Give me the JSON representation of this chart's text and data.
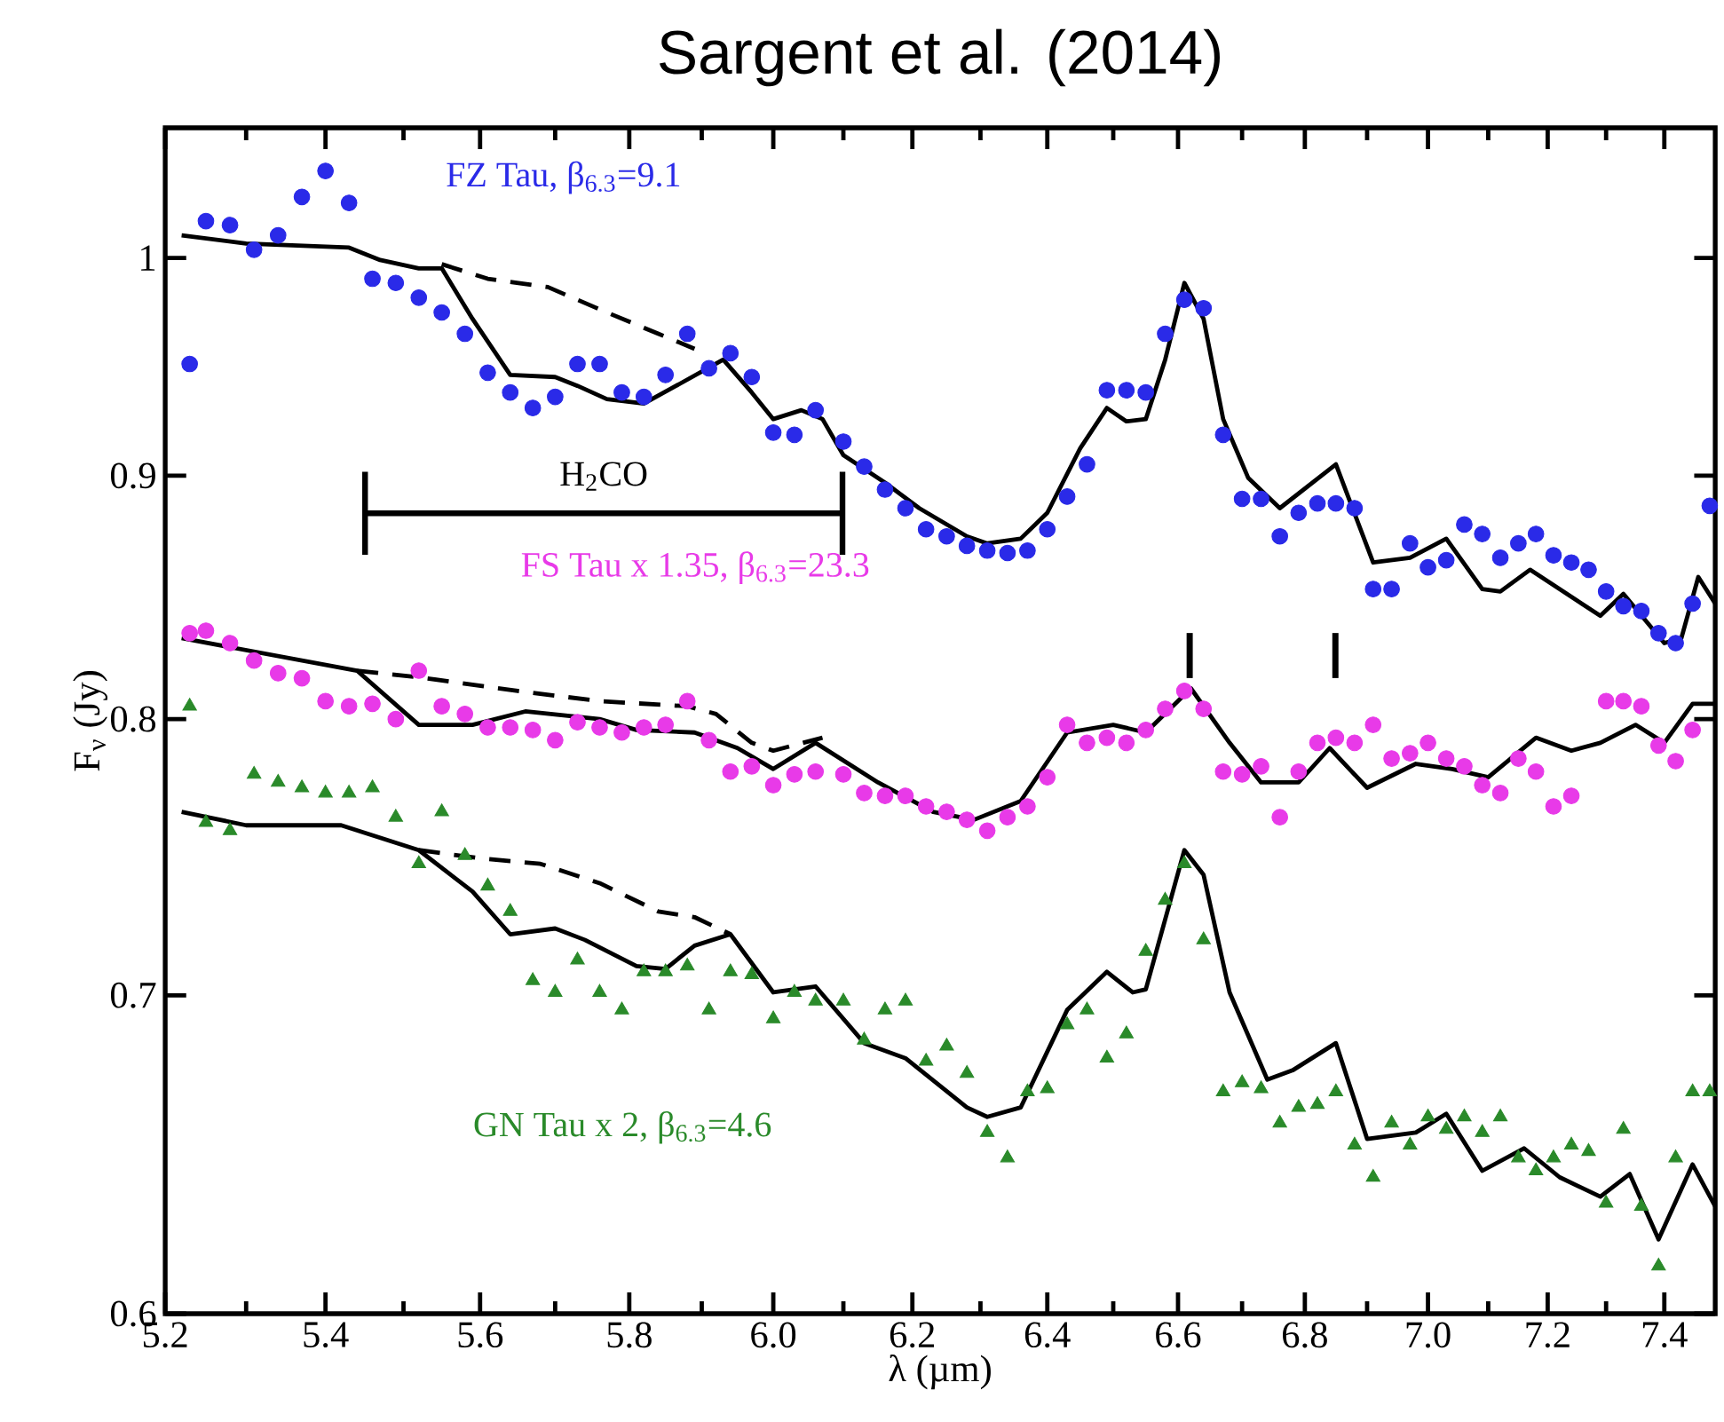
{
  "chart_data": {
    "type": "scatter",
    "title": "Sargent et al. (2014)",
    "xlabel": "λ (µm)",
    "ylabel": "F$_{ν}$ (Jy)",
    "log": "xy",
    "xlim": [
      5.2,
      7.49
    ],
    "ylim": [
      0.6,
      1.065
    ],
    "xticks": [
      {
        "value": 5.2,
        "label": "5.2"
      },
      {
        "value": 5.4,
        "label": "5.4"
      },
      {
        "value": 5.6,
        "label": "5.6"
      },
      {
        "value": 5.8,
        "label": "5.8"
      },
      {
        "value": 6,
        "label": "6.0"
      },
      {
        "value": 6.2,
        "label": "6.2"
      },
      {
        "value": 6.4,
        "label": "6.4"
      },
      {
        "value": 6.6,
        "label": "6.6"
      },
      {
        "value": 6.8,
        "label": "6.8"
      },
      {
        "value": 7,
        "label": "7.0"
      },
      {
        "value": 7.2,
        "label": "7.2"
      },
      {
        "value": 7.4,
        "label": "7.4"
      },
      {
        "value": 5.3,
        "label": null
      },
      {
        "value": 5.5,
        "label": null
      },
      {
        "value": 5.7,
        "label": null
      },
      {
        "value": 5.9,
        "label": null
      },
      {
        "value": 6.1,
        "label": null
      },
      {
        "value": 6.3,
        "label": null
      },
      {
        "value": 6.5,
        "label": null
      },
      {
        "value": 6.7,
        "label": null
      },
      {
        "value": 6.9,
        "label": null
      },
      {
        "value": 7.1,
        "label": null
      },
      {
        "value": 7.3,
        "label": null
      }
    ],
    "yticks": [
      0.6,
      0.7,
      0.8,
      0.9,
      1
    ],
    "x": [
      5.23,
      5.25,
      5.28,
      5.31,
      5.34,
      5.37,
      5.4,
      5.43,
      5.46,
      5.49,
      5.52,
      5.55,
      5.58,
      5.61,
      5.64,
      5.67,
      5.7,
      5.73,
      5.76,
      5.79,
      5.82,
      5.85,
      5.88,
      5.91,
      5.94,
      5.97,
      6.0,
      6.03,
      6.06,
      6.1,
      6.13,
      6.16,
      6.19,
      6.22,
      6.25,
      6.28,
      6.31,
      6.34,
      6.37,
      6.4,
      6.43,
      6.46,
      6.49,
      6.52,
      6.55,
      6.58,
      6.61,
      6.64,
      6.67,
      6.7,
      6.73,
      6.76,
      6.79,
      6.82,
      6.85,
      6.88,
      6.91,
      6.94,
      6.97,
      7.0,
      7.03,
      7.06,
      7.09,
      7.12,
      7.15,
      7.18,
      7.21,
      7.24,
      7.27,
      7.3,
      7.33,
      7.36,
      7.39,
      7.42,
      7.45,
      7.48
    ],
    "series": [
      {
        "name": "FZ Tau, β$_{6.3}$=9.1",
        "marker": "circle",
        "color": "#2a2ae8",
        "values": [
          0.95,
          1.018,
          1.016,
          1.004,
          1.011,
          1.03,
          1.043,
          1.027,
          0.99,
          0.988,
          0.981,
          0.974,
          0.964,
          0.946,
          0.937,
          0.93,
          0.935,
          0.95,
          0.95,
          0.937,
          0.935,
          0.945,
          0.964,
          0.948,
          0.955,
          0.944,
          0.919,
          0.918,
          0.929,
          0.915,
          0.904,
          0.894,
          0.886,
          0.877,
          0.874,
          0.87,
          0.868,
          0.867,
          0.868,
          0.877,
          0.891,
          0.905,
          0.938,
          0.938,
          0.937,
          0.964,
          0.98,
          0.976,
          0.918,
          0.89,
          0.89,
          0.874,
          0.884,
          0.888,
          0.888,
          0.886,
          0.852,
          0.852,
          0.871,
          0.861,
          0.864,
          0.879,
          0.875,
          0.865,
          0.871,
          0.875,
          0.866,
          0.863,
          0.86,
          0.851,
          0.845,
          0.843,
          0.834,
          0.83,
          0.846,
          0.887
        ]
      },
      {
        "name": "FS Tau x 1.35, β$_{6.3}$=23.3",
        "marker": "circle",
        "color": "#e83ae8",
        "values": [
          0.834,
          0.835,
          0.83,
          0.823,
          0.818,
          0.816,
          0.807,
          0.805,
          0.806,
          0.8,
          0.819,
          0.805,
          0.802,
          0.797,
          0.797,
          0.796,
          0.792,
          0.799,
          0.797,
          0.795,
          0.797,
          0.798,
          0.807,
          0.792,
          0.78,
          0.782,
          0.775,
          0.779,
          0.78,
          0.779,
          0.772,
          0.771,
          0.771,
          0.767,
          0.765,
          0.762,
          0.758,
          0.763,
          0.767,
          0.778,
          0.798,
          0.791,
          0.793,
          0.791,
          0.796,
          0.804,
          0.811,
          0.804,
          0.78,
          0.779,
          0.782,
          0.763,
          0.78,
          0.791,
          0.793,
          0.791,
          0.798,
          0.785,
          0.787,
          0.791,
          0.785,
          0.782,
          0.775,
          0.772,
          0.785,
          0.78,
          0.767,
          0.771,
          null,
          0.807,
          0.807,
          0.805,
          0.79,
          0.784,
          0.796,
          null
        ]
      },
      {
        "name": "GN Tau x 2, β$_{6.3}$=4.6",
        "marker": "triangle",
        "color": "#2a8a2a",
        "values": [
          0.805,
          0.761,
          0.758,
          0.779,
          0.776,
          0.774,
          0.772,
          0.772,
          0.774,
          0.763,
          0.746,
          0.765,
          0.749,
          0.738,
          0.729,
          0.705,
          0.701,
          0.712,
          0.701,
          0.695,
          0.708,
          0.708,
          0.71,
          0.695,
          0.708,
          0.707,
          0.692,
          0.701,
          0.698,
          0.698,
          0.685,
          0.695,
          0.698,
          0.678,
          0.683,
          0.674,
          0.655,
          0.647,
          0.668,
          0.669,
          0.69,
          0.695,
          0.679,
          0.687,
          0.715,
          0.733,
          0.746,
          0.719,
          0.668,
          0.671,
          0.669,
          0.658,
          0.663,
          0.664,
          0.668,
          0.651,
          0.641,
          0.658,
          0.651,
          0.66,
          0.656,
          0.66,
          0.655,
          0.66,
          0.647,
          0.643,
          0.647,
          0.651,
          0.649,
          0.633,
          0.656,
          0.632,
          0.614,
          0.647,
          0.668,
          0.668
        ]
      },
      {
        "type": "line",
        "color": "#000000",
        "x": [
          5.22,
          5.3,
          5.43,
          5.47,
          5.52,
          5.55,
          5.59,
          5.64,
          5.7,
          5.73,
          5.77,
          5.82,
          5.87,
          5.93,
          5.97,
          6.0,
          6.04,
          6.07,
          6.1,
          6.16,
          6.21,
          6.28,
          6.31,
          6.36,
          6.4,
          6.45,
          6.49,
          6.52,
          6.55,
          6.58,
          6.61,
          6.64,
          6.67,
          6.71,
          6.76,
          6.85,
          6.91,
          6.97,
          7.03,
          7.09,
          7.12,
          7.17,
          7.29,
          7.33,
          7.4,
          7.43,
          7.46,
          7.49
        ],
        "values": [
          1.011,
          1.007,
          1.005,
          0.999,
          0.995,
          0.995,
          0.971,
          0.945,
          0.944,
          0.94,
          0.934,
          0.932,
          0.941,
          0.952,
          0.937,
          0.925,
          0.929,
          0.925,
          0.909,
          0.897,
          0.886,
          0.874,
          0.871,
          0.873,
          0.884,
          0.912,
          0.93,
          0.924,
          0.925,
          0.952,
          0.988,
          0.971,
          0.925,
          0.899,
          0.886,
          0.905,
          0.863,
          0.865,
          0.873,
          0.852,
          0.851,
          0.86,
          0.841,
          0.85,
          0.83,
          0.832,
          0.857,
          0.846
        ]
      },
      {
        "type": "line",
        "line_style": "dashed",
        "color": "#000000",
        "x": [
          5.55,
          5.61,
          5.69,
          5.77,
          5.84,
          5.89
        ],
        "values": [
          0.997,
          0.99,
          0.986,
          0.974,
          0.964,
          0.957
        ]
      },
      {
        "type": "line",
        "color": "#000000",
        "x": [
          5.22,
          5.44,
          5.52,
          5.59,
          5.66,
          5.76,
          5.81,
          5.89,
          5.95,
          6.0,
          6.06,
          6.15,
          6.23,
          6.29,
          6.36,
          6.43,
          6.5,
          6.55,
          6.62,
          6.68,
          6.73,
          6.79,
          6.84,
          6.9,
          6.98,
          7.04,
          7.1,
          7.18,
          7.24,
          7.29,
          7.35,
          7.4,
          7.45,
          7.49
        ],
        "values": [
          0.832,
          0.819,
          0.798,
          0.798,
          0.803,
          0.8,
          0.796,
          0.795,
          0.789,
          0.781,
          0.791,
          0.776,
          0.765,
          0.762,
          0.769,
          0.795,
          0.798,
          0.795,
          0.812,
          0.791,
          0.776,
          0.776,
          0.789,
          0.774,
          0.783,
          0.781,
          0.778,
          0.793,
          0.788,
          0.791,
          0.798,
          0.791,
          0.806,
          0.806
        ]
      },
      {
        "type": "line",
        "line_style": "dashed",
        "color": "#000000",
        "x": [
          5.44,
          5.53,
          5.65,
          5.76,
          5.88,
          5.92,
          5.97,
          6.0,
          6.07
        ],
        "values": [
          0.819,
          0.816,
          0.811,
          0.807,
          0.805,
          0.802,
          0.791,
          0.788,
          0.793
        ]
      },
      {
        "type": "line",
        "color": "#000000",
        "x": [
          5.22,
          5.3,
          5.42,
          5.52,
          5.59,
          5.64,
          5.7,
          5.74,
          5.81,
          5.85,
          5.89,
          5.94,
          6.0,
          6.06,
          6.13,
          6.19,
          6.28,
          6.31,
          6.36,
          6.43,
          6.49,
          6.53,
          6.55,
          6.61,
          6.64,
          6.68,
          6.74,
          6.78,
          6.85,
          6.9,
          6.98,
          7.03,
          7.09,
          7.16,
          7.22,
          7.29,
          7.34,
          7.39,
          7.45,
          7.49
        ],
        "values": [
          0.765,
          0.76,
          0.76,
          0.751,
          0.736,
          0.721,
          0.723,
          0.719,
          0.71,
          0.709,
          0.717,
          0.721,
          0.701,
          0.703,
          0.684,
          0.679,
          0.663,
          0.66,
          0.663,
          0.695,
          0.708,
          0.701,
          0.702,
          0.751,
          0.742,
          0.701,
          0.672,
          0.675,
          0.684,
          0.653,
          0.655,
          0.661,
          0.643,
          0.65,
          0.641,
          0.635,
          0.642,
          0.622,
          0.645,
          0.632
        ]
      },
      {
        "type": "line",
        "line_style": "dashed",
        "color": "#000000",
        "x": [
          5.52,
          5.6,
          5.68,
          5.76,
          5.84,
          5.89,
          5.94
        ],
        "values": [
          0.751,
          0.748,
          0.746,
          0.739,
          0.729,
          0.727,
          0.721
        ]
      }
    ],
    "annotations": [
      "H$_{2}$CO"
    ]
  }
}
